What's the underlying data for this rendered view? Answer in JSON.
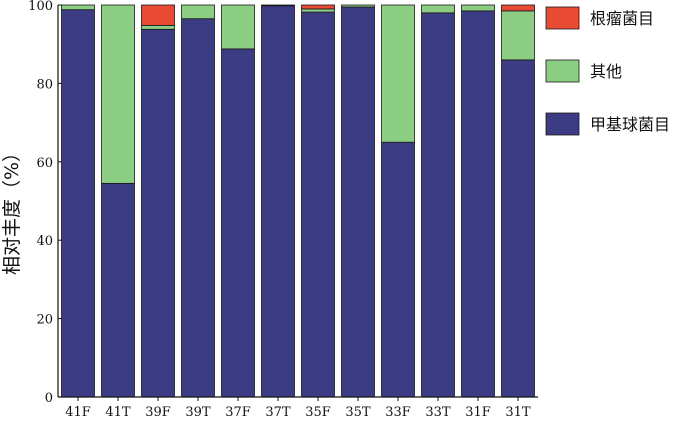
{
  "chart_data": {
    "type": "bar",
    "stacked": true,
    "categories": [
      "41F",
      "41T",
      "39F",
      "39T",
      "37F",
      "37T",
      "35F",
      "35T",
      "33F",
      "33T",
      "31F",
      "31T"
    ],
    "series": [
      {
        "name": "甲基球菌目",
        "color": "#3c3c84",
        "values": [
          98.8,
          54.5,
          93.8,
          96.5,
          88.8,
          99.8,
          98.2,
          99.5,
          65.0,
          98.0,
          98.5,
          86.0
        ]
      },
      {
        "name": "其他",
        "color": "#8ccd84",
        "values": [
          1.2,
          45.5,
          1.0,
          3.5,
          11.2,
          0.2,
          0.8,
          0.5,
          35.0,
          2.0,
          1.5,
          12.5
        ]
      },
      {
        "name": "根瘤菌目",
        "color": "#e84a33",
        "values": [
          0.0,
          0.0,
          5.2,
          0.0,
          0.0,
          0.0,
          1.0,
          0.0,
          0.0,
          0.0,
          0.0,
          1.5
        ]
      }
    ],
    "legend_order": [
      "根瘤菌目",
      "其他",
      "甲基球菌目"
    ],
    "legend_position": "right",
    "ylabel": "相对丰度（%）",
    "xlabel": "",
    "ylim": [
      0,
      100
    ],
    "yticks": [
      0,
      20,
      40,
      60,
      80,
      100
    ],
    "grid": false
  }
}
